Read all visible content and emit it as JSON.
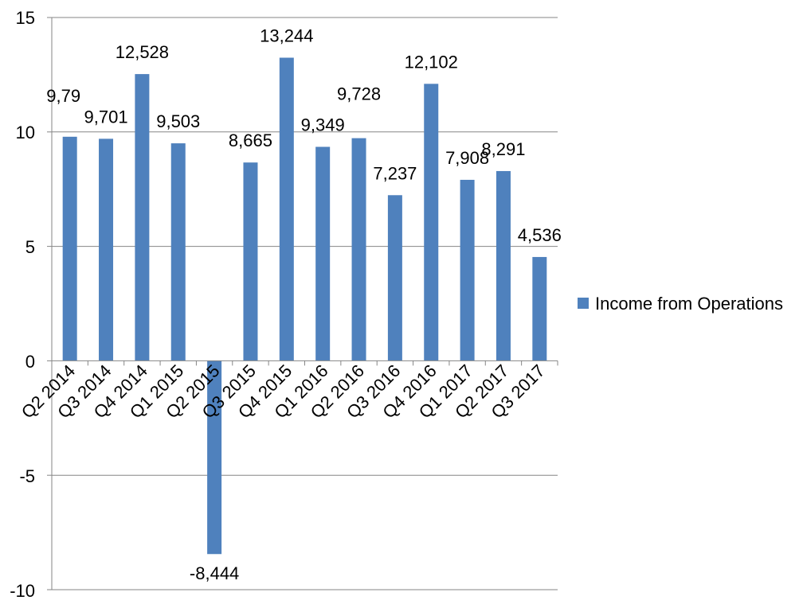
{
  "chart_data": {
    "type": "bar",
    "categories": [
      "Q2 2014",
      "Q3 2014",
      "Q4 2014",
      "Q1 2015",
      "Q2 2015",
      "Q3 2015",
      "Q4 2015",
      "Q1 2016",
      "Q2 2016",
      "Q3 2016",
      "Q4 2016",
      "Q1 2017",
      "Q2 2017",
      "Q3 2017"
    ],
    "series": [
      {
        "name": "Income from Operations",
        "values": [
          9.79,
          9.701,
          12.528,
          9.503,
          -8.444,
          8.665,
          13.244,
          9.349,
          9.728,
          7.237,
          12.102,
          7.908,
          8.291,
          4.536
        ],
        "labels": [
          "9,79",
          "9,701",
          "12,528",
          "9,503",
          "-8,444",
          "8,665",
          "13,244",
          "9,349",
          "9,728",
          "7,237",
          "12,102",
          "7,908",
          "8,291",
          "4,536"
        ],
        "color": "#4F81BD"
      }
    ],
    "y_ticks": [
      "15",
      "10",
      "5",
      "0",
      "-5",
      "-10"
    ],
    "ylim": [
      -10,
      15
    ],
    "gridlines": true,
    "legend_position": "right",
    "title": "",
    "xlabel": "",
    "ylabel": ""
  }
}
